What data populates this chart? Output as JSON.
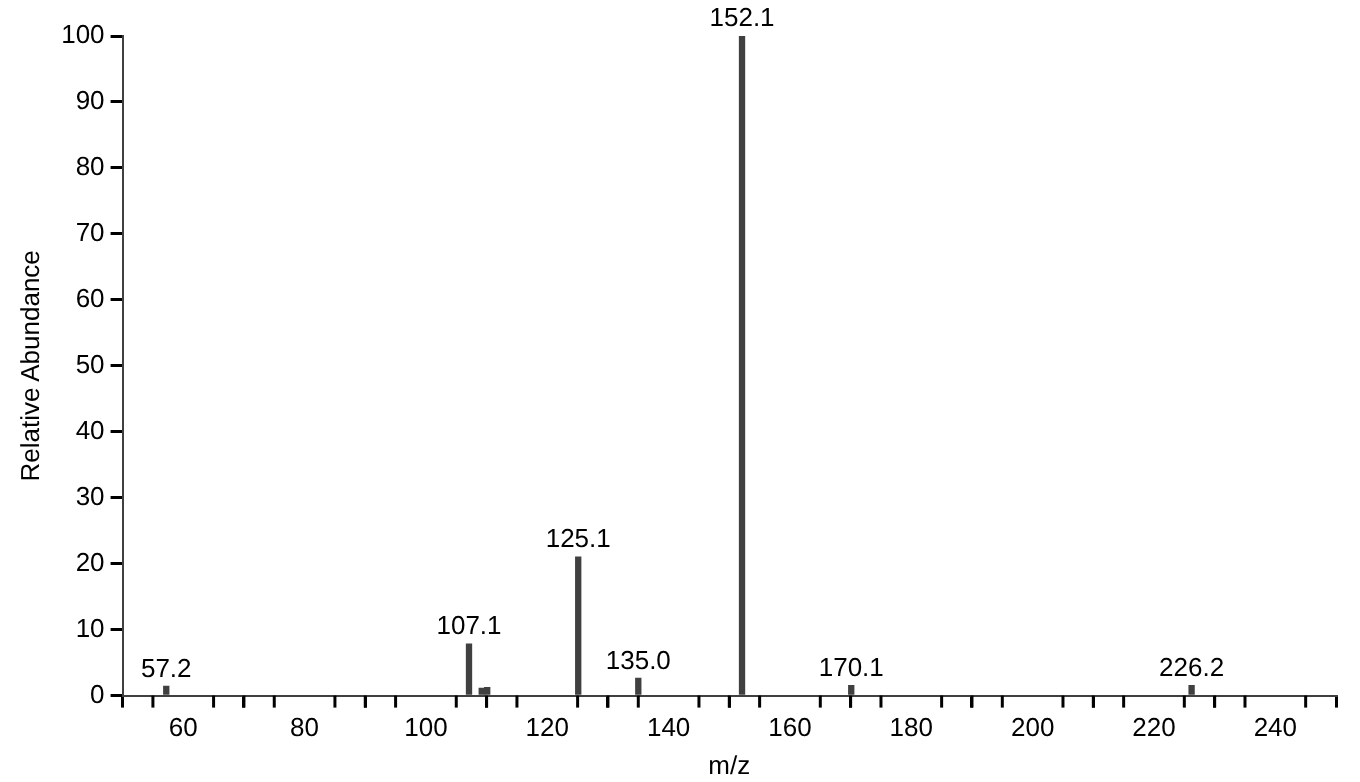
{
  "chart_data": {
    "type": "bar",
    "xlabel": "m/z",
    "ylabel": "Relative Abundance",
    "x": [
      57.2,
      107.1,
      109.2,
      110.1,
      125.1,
      135.0,
      152.1,
      170.1,
      226.2
    ],
    "values": [
      1.4,
      7.8,
      1.1,
      1.2,
      21,
      2.6,
      100,
      1.5,
      1.5
    ],
    "annotations": [
      {
        "text": "57.2",
        "x": 57.2,
        "y": 1.4
      },
      {
        "text": "107.1",
        "x": 107.1,
        "y": 7.8
      },
      {
        "text": "125.1",
        "x": 125.1,
        "y": 21
      },
      {
        "text": "135.0",
        "x": 135.0,
        "y": 2.6
      },
      {
        "text": "152.1",
        "x": 152.1,
        "y": 100
      },
      {
        "text": "170.1",
        "x": 170.1,
        "y": 1.5
      },
      {
        "text": "226.2",
        "x": 226.2,
        "y": 1.5
      }
    ],
    "color": "#404040",
    "xlim": [
      50,
      250
    ],
    "xticks": [
      {
        "value": 55,
        "label": null
      },
      60,
      {
        "value": 65,
        "label": null
      },
      {
        "value": 70,
        "label": null
      },
      {
        "value": 75,
        "label": null
      },
      80,
      {
        "value": 85,
        "label": null
      },
      {
        "value": 90,
        "label": null
      },
      {
        "value": 95,
        "label": null
      },
      100,
      {
        "value": 105,
        "label": null
      },
      {
        "value": 110,
        "label": null
      },
      {
        "value": 115,
        "label": null
      },
      120,
      {
        "value": 125,
        "label": null
      },
      {
        "value": 130,
        "label": null
      },
      {
        "value": 135,
        "label": null
      },
      140,
      {
        "value": 145,
        "label": null
      },
      {
        "value": 150,
        "label": null
      },
      {
        "value": 155,
        "label": null
      },
      160,
      {
        "value": 165,
        "label": null
      },
      {
        "value": 170,
        "label": null
      },
      {
        "value": 175,
        "label": null
      },
      180,
      {
        "value": 185,
        "label": null
      },
      {
        "value": 190,
        "label": null
      },
      {
        "value": 195,
        "label": null
      },
      200,
      {
        "value": 205,
        "label": null
      },
      {
        "value": 210,
        "label": null
      },
      {
        "value": 215,
        "label": null
      },
      220,
      {
        "value": 225,
        "label": null
      },
      {
        "value": 230,
        "label": null
      },
      {
        "value": 235,
        "label": null
      },
      240,
      {
        "value": 245,
        "label": null
      }
    ],
    "ylim": [
      0,
      100
    ],
    "yticks": [
      0,
      10,
      20,
      30,
      40,
      50,
      60,
      70,
      80,
      90,
      100
    ],
    "grid": false,
    "legend": false
  }
}
